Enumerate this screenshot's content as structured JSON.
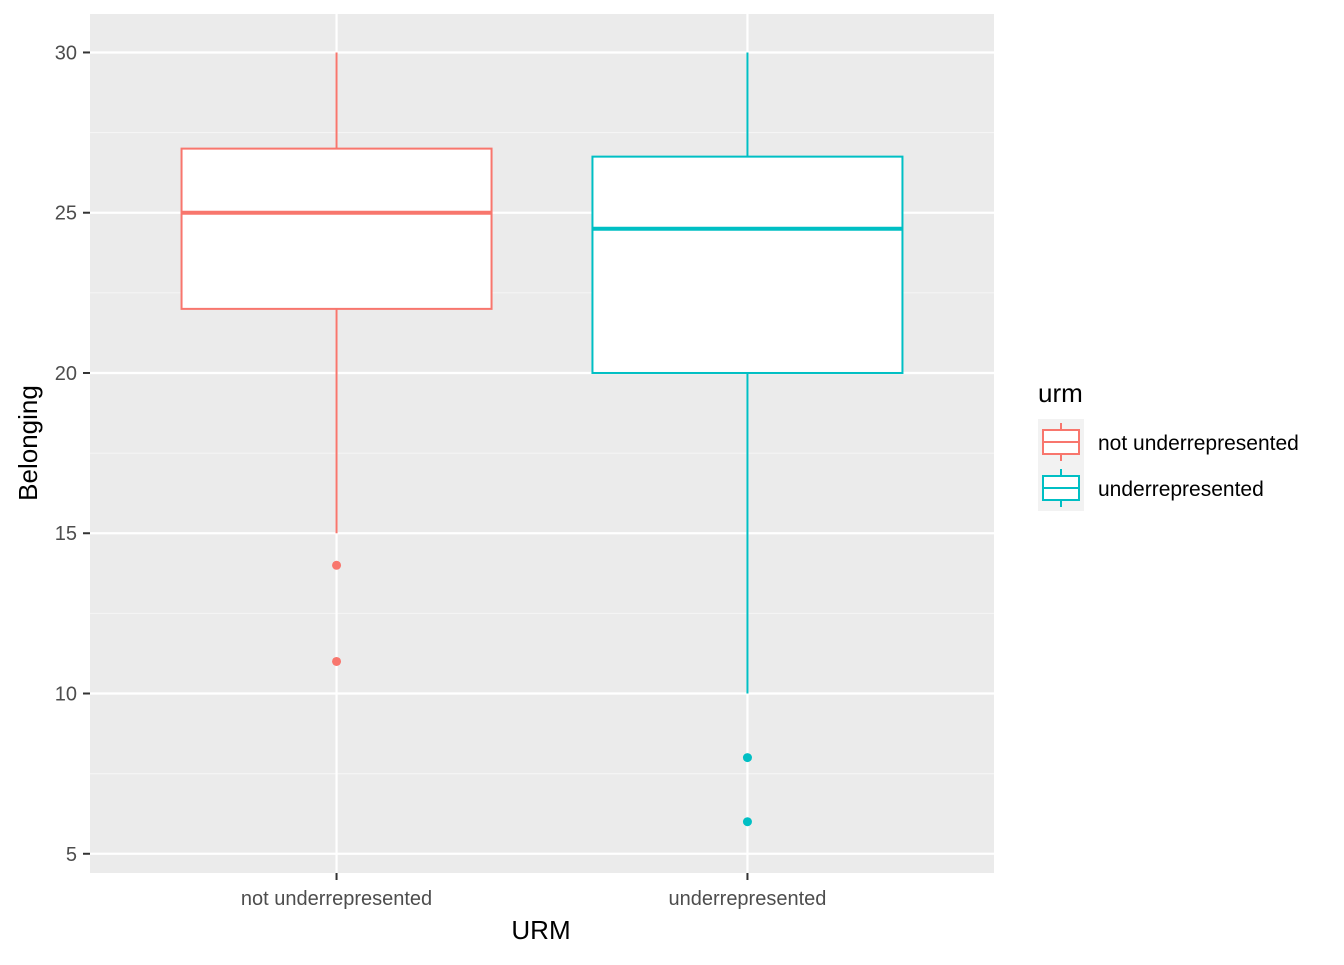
{
  "chart_data": {
    "type": "boxplot",
    "xlabel": "URM",
    "ylabel": "Belonging",
    "categories": [
      "not underrepresented",
      "underrepresented"
    ],
    "ylim": [
      4.4,
      31.2
    ],
    "yticks": [
      5,
      10,
      15,
      20,
      25,
      30
    ],
    "grid": true,
    "legend": {
      "title": "urm",
      "placement": "right",
      "entries": [
        "not underrepresented",
        "underrepresented"
      ]
    },
    "boxes": [
      {
        "name": "not underrepresented",
        "color": "#F8766D",
        "whisker_low": 15,
        "q1": 22,
        "median": 25,
        "q3": 27,
        "whisker_high": 30,
        "outliers": [
          14,
          11
        ]
      },
      {
        "name": "underrepresented",
        "color": "#00BFC4",
        "whisker_low": 10,
        "q1": 20,
        "median": 24.5,
        "q3": 26.75,
        "whisker_high": 30,
        "outliers": [
          8,
          6
        ]
      }
    ]
  },
  "colors": {
    "panel_background": "#EBEBEB",
    "grid_major": "#FFFFFF",
    "grid_minor": "#F5F5F5",
    "tick_text": "#4D4D4D"
  }
}
